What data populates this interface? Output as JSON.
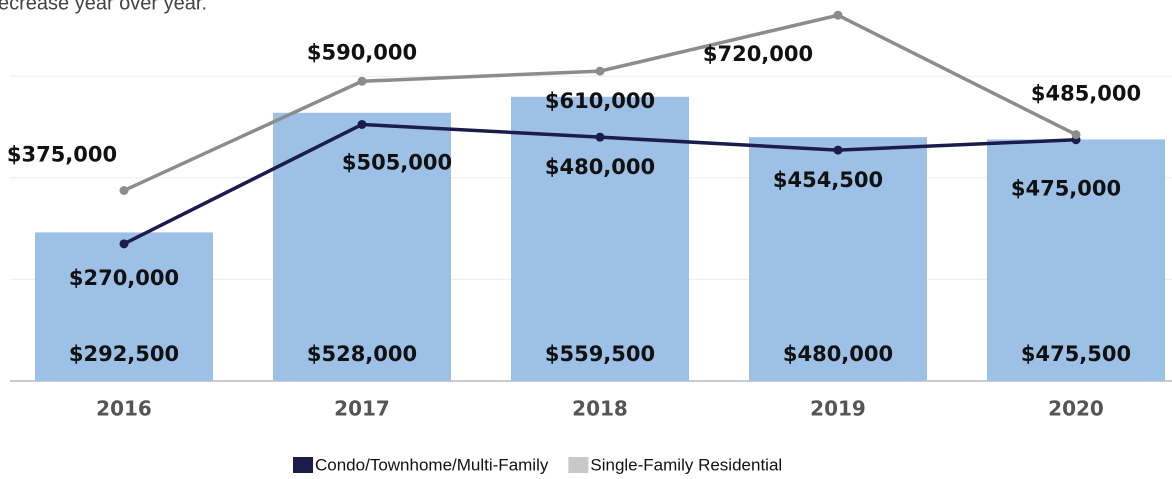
{
  "chart_data": {
    "type": "bar",
    "subtitle": "ecrease year over year.",
    "categories": [
      "2016",
      "2017",
      "2018",
      "2019",
      "2020"
    ],
    "values": [
      292500,
      528000,
      559500,
      480000,
      475500
    ],
    "value_labels": [
      "$292,500",
      "$528,000",
      "$559,500",
      "$480,000",
      "$475,500"
    ],
    "color": "#9dc0e6",
    "series": [
      {
        "name": "Condo/Townhome/Multi-Family",
        "type": "line",
        "color": "#1c1c4c",
        "values": [
          270000,
          505000,
          480000,
          454500,
          475000
        ],
        "value_labels": [
          "$270,000",
          "$505,000",
          "$480,000",
          "$454,500",
          "$475,000"
        ]
      },
      {
        "name": "Single-Family Residential",
        "type": "line",
        "color": "#8c8c8c",
        "values": [
          375000,
          590000,
          610000,
          720000,
          485000
        ],
        "value_labels": [
          "$375,000",
          "$590,000",
          "$610,000",
          "$720,000",
          "$485,000"
        ]
      }
    ],
    "ylim": [
      0,
      750000
    ],
    "yticks": [
      0,
      200000,
      400000,
      600000
    ],
    "grid": true,
    "legend": "bottom"
  }
}
